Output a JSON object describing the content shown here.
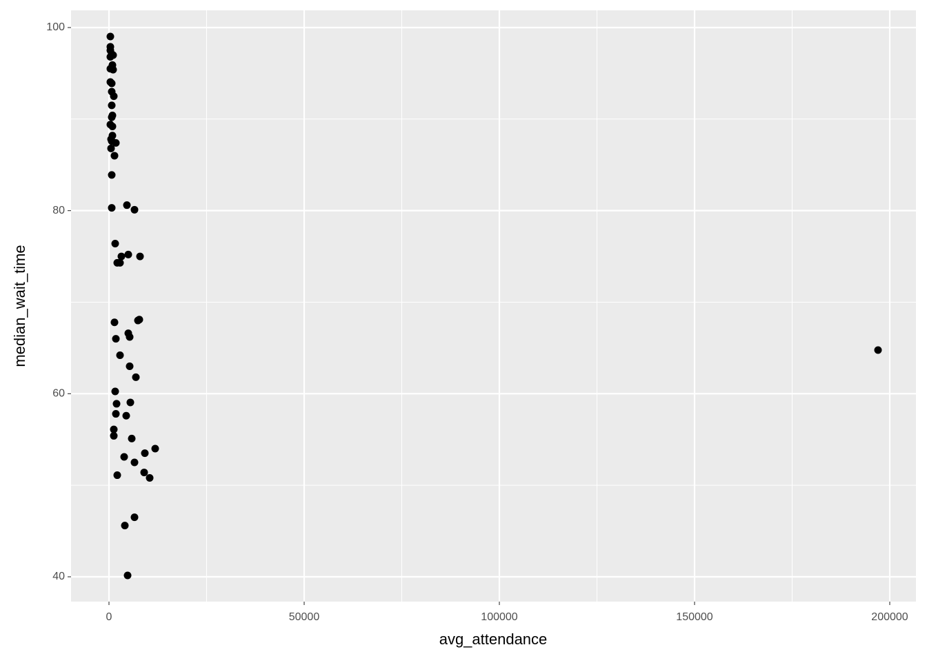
{
  "chart_data": {
    "type": "scatter",
    "x_label": "avg_attendance",
    "y_label": "median_wait_time",
    "color": "#000000",
    "grid": true,
    "xlim": [
      -9717,
      206714
    ],
    "ylim": [
      37.29,
      101.88
    ],
    "xticks": [
      0,
      50000,
      100000,
      150000,
      200000
    ],
    "yticks": [
      40,
      60,
      80,
      100
    ],
    "xminor": [
      25000,
      75000,
      125000,
      175000
    ],
    "yminor": [
      50,
      70,
      90
    ],
    "x": [
      353,
      353,
      353,
      707,
      1060,
      353,
      883,
      353,
      1060,
      353,
      707,
      707,
      1237,
      707,
      883,
      707,
      353,
      883,
      883,
      530,
      1767,
      707,
      530,
      1413,
      707,
      707,
      4594,
      6537,
      1590,
      2120,
      2827,
      3180,
      4947,
      7951,
      1413,
      7420,
      7774,
      1767,
      4947,
      5300,
      2827,
      5300,
      6890,
      1590,
      1943,
      5477,
      1767,
      4417,
      1237,
      1237,
      5830,
      11837,
      9187,
      3887,
      6537,
      2120,
      9011,
      10424,
      6537,
      4064,
      4770,
      196996
    ],
    "values": [
      99.02,
      97.9,
      97.5,
      97.1,
      96.99,
      96.8,
      95.9,
      95.5,
      95.4,
      94.05,
      93.9,
      93.0,
      92.5,
      91.5,
      90.4,
      90.2,
      89.4,
      89.2,
      88.2,
      87.8,
      87.4,
      87.6,
      86.8,
      86.0,
      83.9,
      80.3,
      80.6,
      80.1,
      76.4,
      74.3,
      74.3,
      75.0,
      75.2,
      75.0,
      67.8,
      68.0,
      68.1,
      66.0,
      66.6,
      66.2,
      64.2,
      63.0,
      61.8,
      60.25,
      58.9,
      59.05,
      57.8,
      57.6,
      56.1,
      55.4,
      55.1,
      54.0,
      53.5,
      53.1,
      52.5,
      51.1,
      51.4,
      50.8,
      46.5,
      45.6,
      40.15,
      64.77
    ]
  }
}
